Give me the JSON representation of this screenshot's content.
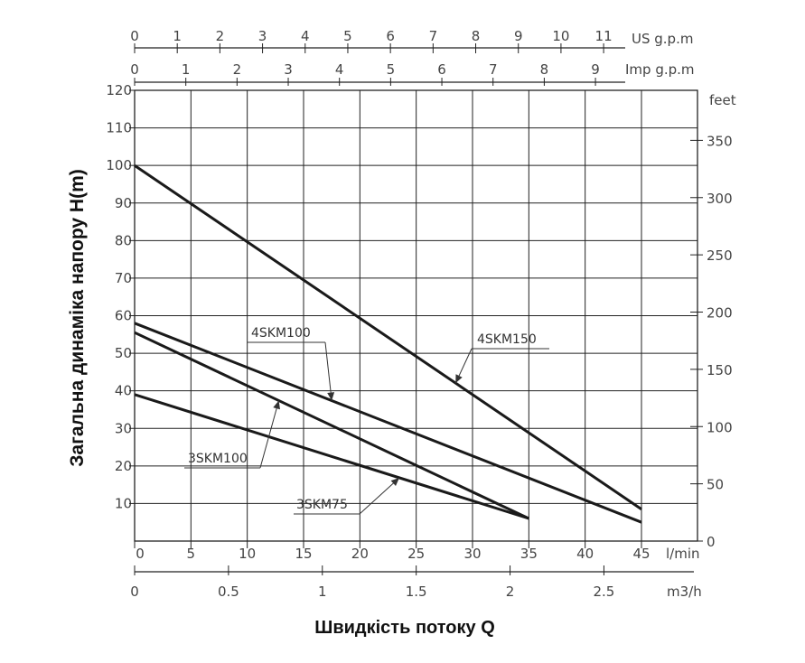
{
  "chart_data": {
    "type": "line",
    "title": "",
    "xlabel": "Швидкість потоку Q",
    "ylabel": "Загальна динаміка напору H(m)",
    "x_unit": "l/min",
    "xlim": [
      0,
      45
    ],
    "ylim": [
      0,
      120
    ],
    "grid": true,
    "x_ticks": [
      0,
      5,
      10,
      15,
      20,
      25,
      30,
      35,
      40,
      45
    ],
    "y_ticks": [
      10,
      20,
      30,
      40,
      50,
      60,
      70,
      80,
      90,
      100,
      110,
      120
    ],
    "right_axis": {
      "unit": "feet",
      "ticks": [
        0,
        50,
        100,
        150,
        200,
        250,
        300,
        350
      ]
    },
    "secondary_x_axes": [
      {
        "unit": "US g.p.m",
        "ticks": [
          0,
          1,
          2,
          3,
          4,
          5,
          6,
          7,
          8,
          9,
          10,
          11
        ]
      },
      {
        "unit": "Imp g.p.m",
        "ticks": [
          0,
          1,
          2,
          3,
          4,
          5,
          6,
          7,
          8,
          9
        ]
      },
      {
        "unit": "m3/h",
        "ticks": [
          "0",
          "0.5",
          "1",
          "1.5",
          "2",
          "2.5"
        ]
      }
    ],
    "series": [
      {
        "name": "4SKM150",
        "x": [
          0,
          45
        ],
        "y": [
          100,
          8.5
        ]
      },
      {
        "name": "4SKM100",
        "x": [
          0,
          45
        ],
        "y": [
          58,
          5
        ]
      },
      {
        "name": "3SKM100",
        "x": [
          0,
          35
        ],
        "y": [
          55.5,
          6
        ]
      },
      {
        "name": "3SKM75",
        "x": [
          0,
          35
        ],
        "y": [
          39,
          6
        ]
      }
    ],
    "annotations": [
      {
        "series": "4SKM150",
        "text": "4SKM150",
        "at_x": 28.5
      },
      {
        "series": "4SKM100",
        "text": "4SKM100",
        "at_x": 17.5
      },
      {
        "series": "3SKM100",
        "text": "3SKM100",
        "at_x": 12.8
      },
      {
        "series": "3SKM75",
        "text": "3SKM75",
        "at_x": 23.5
      }
    ]
  }
}
